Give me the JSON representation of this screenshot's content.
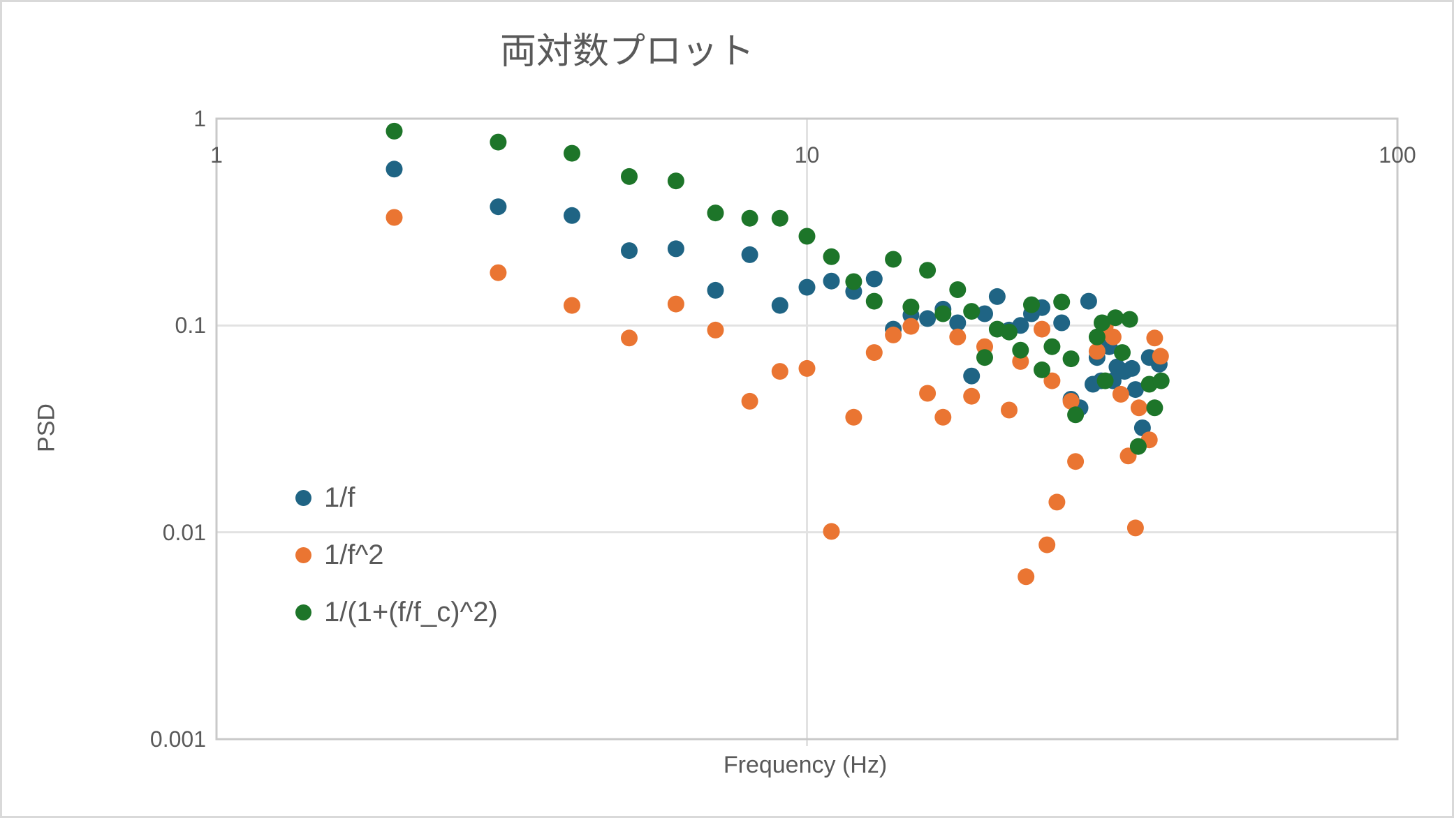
{
  "chart": {
    "title": "両対数プロット",
    "x_axis": {
      "title": "Frequency (Hz)",
      "tick_labels": [
        "1",
        "10",
        "100"
      ]
    },
    "y_axis": {
      "title": "PSD",
      "tick_labels": [
        "1",
        "0.1",
        "0.01",
        "0.001"
      ]
    }
  },
  "colors": {
    "text": "#595959",
    "plot_border": "#c9c9c9",
    "gridline": "#e2e2e2",
    "series_blue": "#1f6484",
    "series_orange": "#ea7532",
    "series_green": "#1d7529"
  },
  "chart_data": {
    "type": "scatter",
    "title": "両対数プロット",
    "xlabel": "Frequency (Hz)",
    "ylabel": "PSD",
    "xscale": "log",
    "yscale": "log",
    "xlim": [
      1,
      100
    ],
    "ylim": [
      0.001,
      1
    ],
    "x_ticks": [
      1,
      10,
      100
    ],
    "y_ticks": [
      1,
      0.1,
      0.01,
      0.001
    ],
    "grid": true,
    "legend_position": "inside left middle",
    "marker": "circle",
    "series": [
      {
        "name": "1/f",
        "color": "#1f6484",
        "points": [
          [
            2,
            0.57
          ],
          [
            3,
            0.375
          ],
          [
            4,
            0.34
          ],
          [
            5,
            0.23
          ],
          [
            6,
            0.235
          ],
          [
            7,
            0.148
          ],
          [
            8,
            0.22
          ],
          [
            9,
            0.125
          ],
          [
            10,
            0.153
          ],
          [
            11,
            0.164
          ],
          [
            12,
            0.146
          ],
          [
            13,
            0.168
          ],
          [
            14,
            0.096
          ],
          [
            15,
            0.112
          ],
          [
            16,
            0.108
          ],
          [
            17,
            0.12
          ],
          [
            18,
            0.103
          ],
          [
            19,
            0.057
          ],
          [
            20,
            0.114
          ],
          [
            21,
            0.138
          ],
          [
            22,
            0.095
          ],
          [
            23,
            0.1
          ],
          [
            24,
            0.114
          ],
          [
            25,
            0.122
          ],
          [
            27,
            0.103
          ],
          [
            28,
            0.044
          ],
          [
            29,
            0.04
          ],
          [
            30,
            0.131
          ],
          [
            30.5,
            0.052
          ],
          [
            31,
            0.07
          ],
          [
            31.5,
            0.054
          ],
          [
            32.5,
            0.079
          ],
          [
            33,
            0.054
          ],
          [
            33.5,
            0.063
          ],
          [
            34.5,
            0.06
          ],
          [
            35.5,
            0.062
          ],
          [
            36,
            0.049
          ],
          [
            37,
            0.032
          ],
          [
            38,
            0.07
          ],
          [
            39.5,
            0.065
          ]
        ]
      },
      {
        "name": "1/f^2",
        "color": "#ea7532",
        "points": [
          [
            2,
            0.333
          ],
          [
            3,
            0.18
          ],
          [
            4,
            0.125
          ],
          [
            5,
            0.087
          ],
          [
            6,
            0.127
          ],
          [
            7,
            0.095
          ],
          [
            8,
            0.043
          ],
          [
            9,
            0.06
          ],
          [
            10,
            0.062
          ],
          [
            11,
            0.0101
          ],
          [
            12,
            0.036
          ],
          [
            13,
            0.074
          ],
          [
            14,
            0.09
          ],
          [
            15,
            0.099
          ],
          [
            16,
            0.047
          ],
          [
            17,
            0.036
          ],
          [
            18,
            0.088
          ],
          [
            19,
            0.0455
          ],
          [
            20,
            0.079
          ],
          [
            22,
            0.039
          ],
          [
            23,
            0.067
          ],
          [
            23.5,
            0.0061
          ],
          [
            25,
            0.096
          ],
          [
            25.5,
            0.0087
          ],
          [
            26,
            0.054
          ],
          [
            26.5,
            0.014
          ],
          [
            28,
            0.043
          ],
          [
            28.5,
            0.022
          ],
          [
            31,
            0.075
          ],
          [
            32,
            0.099
          ],
          [
            33,
            0.088
          ],
          [
            34,
            0.0465
          ],
          [
            35,
            0.0234
          ],
          [
            36,
            0.0105
          ],
          [
            36.5,
            0.04
          ],
          [
            38,
            0.028
          ],
          [
            38.8,
            0.087
          ],
          [
            39.7,
            0.071
          ]
        ]
      },
      {
        "name": "1/(1+(f/f_c)^2)",
        "color": "#1d7529",
        "points": [
          [
            2,
            0.87
          ],
          [
            3,
            0.77
          ],
          [
            4,
            0.68
          ],
          [
            5,
            0.525
          ],
          [
            6,
            0.5
          ],
          [
            7,
            0.35
          ],
          [
            8,
            0.33
          ],
          [
            9,
            0.33
          ],
          [
            10,
            0.27
          ],
          [
            11,
            0.215
          ],
          [
            12,
            0.163
          ],
          [
            13,
            0.131
          ],
          [
            14,
            0.209
          ],
          [
            15,
            0.123
          ],
          [
            16,
            0.185
          ],
          [
            17,
            0.114
          ],
          [
            18,
            0.149
          ],
          [
            19,
            0.117
          ],
          [
            20,
            0.07
          ],
          [
            21,
            0.096
          ],
          [
            22,
            0.093
          ],
          [
            23,
            0.076
          ],
          [
            24,
            0.126
          ],
          [
            25,
            0.061
          ],
          [
            26,
            0.079
          ],
          [
            27,
            0.13
          ],
          [
            28,
            0.069
          ],
          [
            28.5,
            0.037
          ],
          [
            31,
            0.088
          ],
          [
            31.6,
            0.103
          ],
          [
            32,
            0.054
          ],
          [
            33.3,
            0.109
          ],
          [
            34.2,
            0.074
          ],
          [
            35.2,
            0.107
          ],
          [
            36.4,
            0.026
          ],
          [
            38,
            0.052
          ],
          [
            38.8,
            0.04
          ],
          [
            39.8,
            0.054
          ]
        ]
      }
    ]
  }
}
